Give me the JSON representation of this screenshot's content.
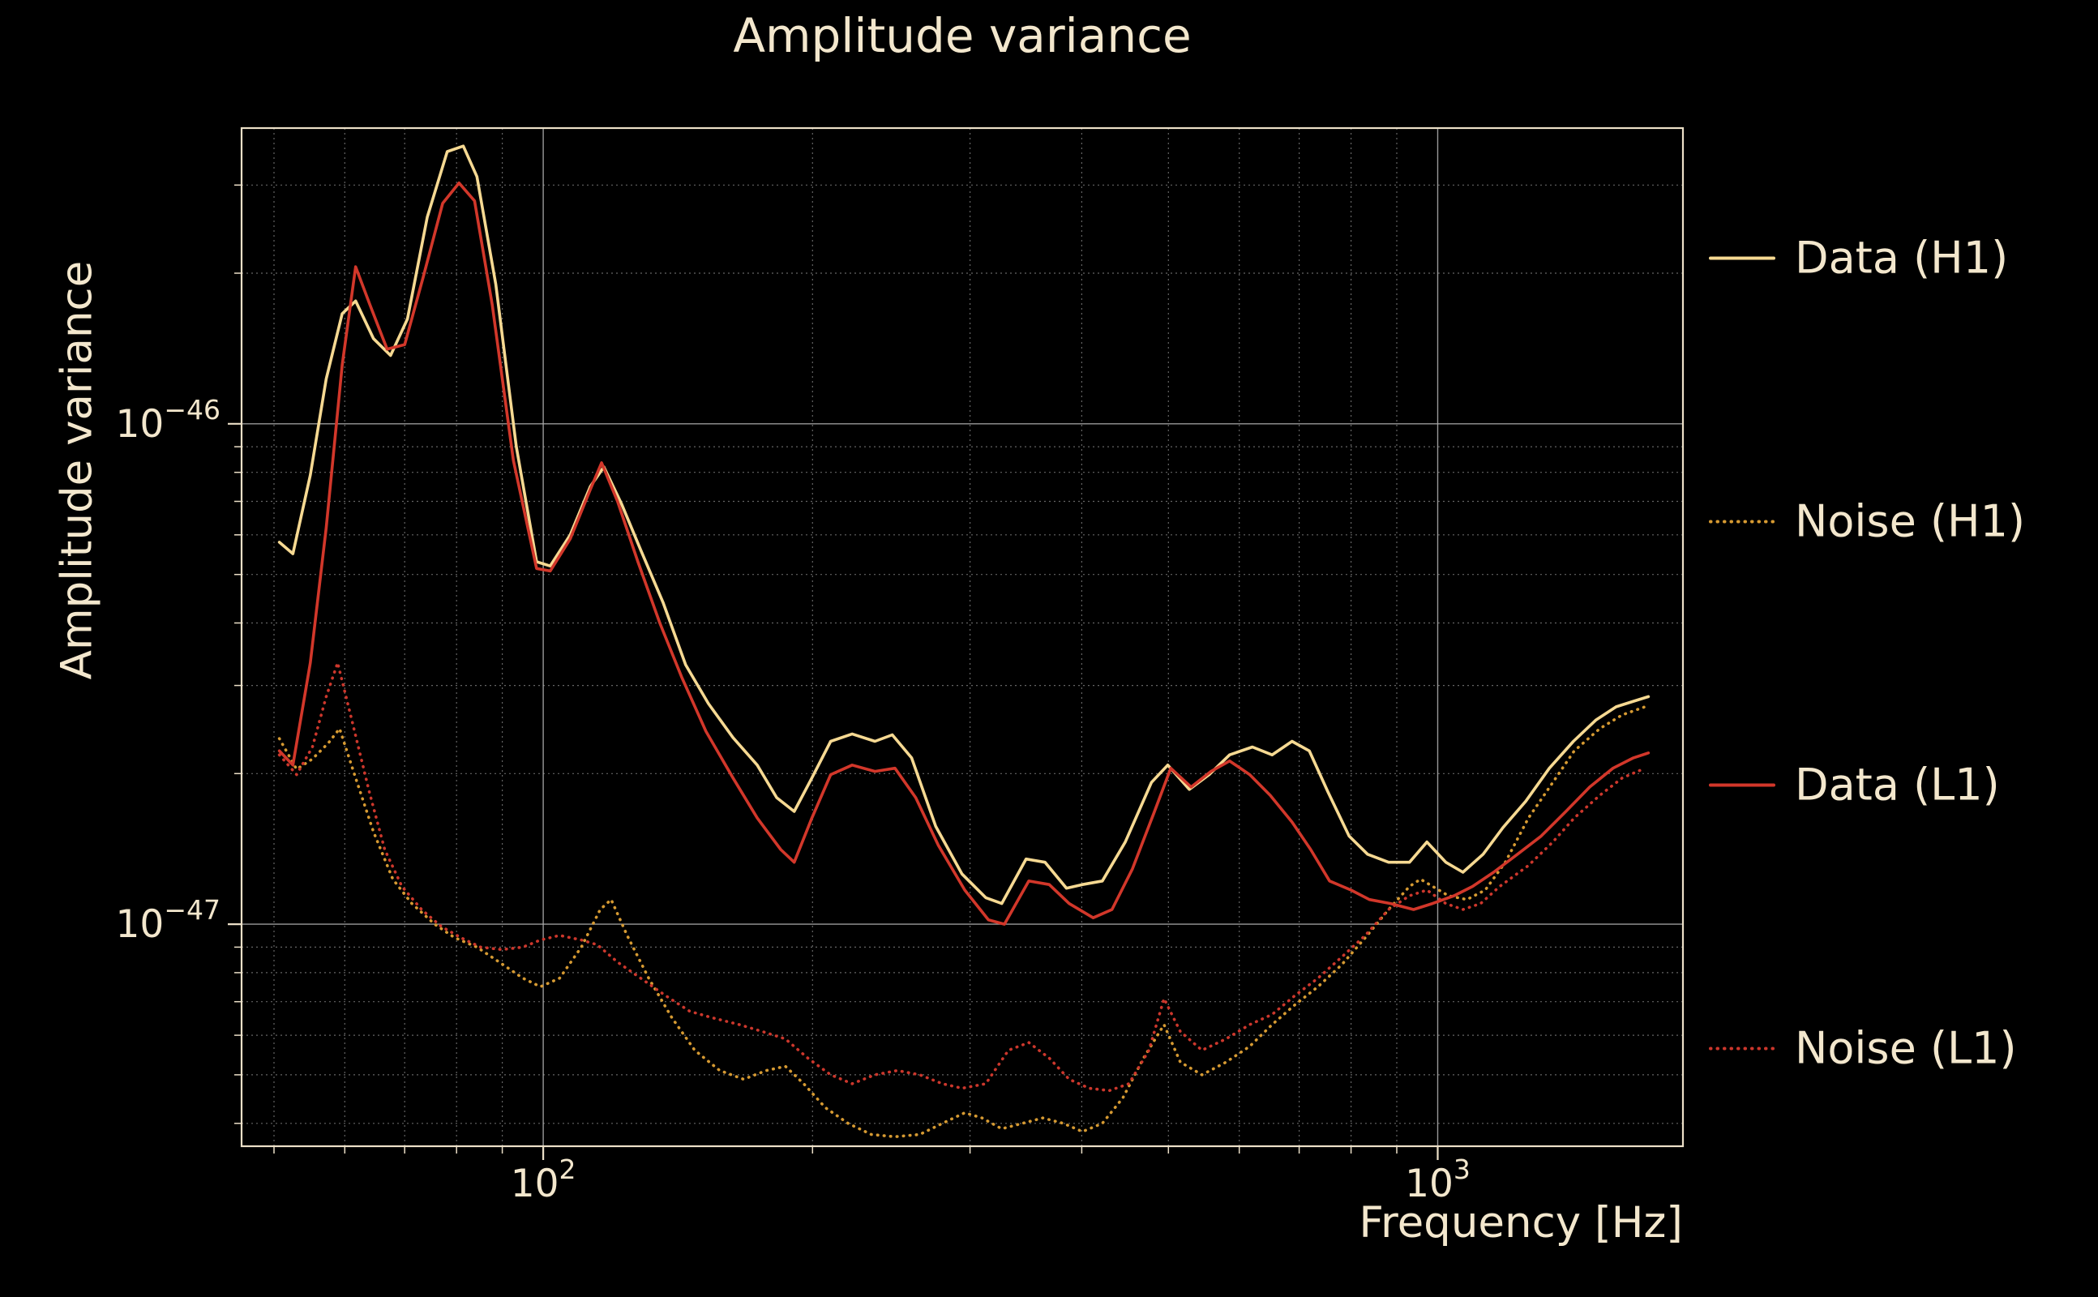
{
  "chart_data": {
    "type": "line",
    "title": "Amplitude variance",
    "xlabel": "Frequency [Hz]",
    "ylabel": "Amplitude variance",
    "x_scale": "log",
    "y_scale": "log",
    "xlim": [
      46,
      1880
    ],
    "ylim": [
      3.6e-48,
      3.9e-46
    ],
    "grid": "both",
    "legend_position": "right",
    "background": "#000000",
    "text_color": "#f3e7cd",
    "x_ticks_major": [
      {
        "value": 100,
        "base": "10",
        "exp": "2"
      },
      {
        "value": 1000,
        "base": "10",
        "exp": "3"
      }
    ],
    "x_ticks_minor": [
      50,
      60,
      70,
      80,
      90,
      200,
      300,
      400,
      500,
      600,
      700,
      800,
      900
    ],
    "y_ticks_major": [
      {
        "value": 1e-46,
        "base": "10",
        "exp": "−46"
      },
      {
        "value": 1e-47,
        "base": "10",
        "exp": "−47"
      }
    ],
    "y_ticks_minor": [
      4e-48,
      5e-48,
      6e-48,
      7e-48,
      8e-48,
      9e-48,
      2e-47,
      3e-47,
      4e-47,
      5e-47,
      6e-47,
      7e-47,
      8e-47,
      9e-47,
      2e-46,
      3e-46
    ],
    "series": [
      {
        "name": "Data (H1)",
        "color": "#f6d992",
        "style": "solid",
        "points": [
          [
            50.7,
            5.8e-47
          ],
          [
            52.5,
            5.5e-47
          ],
          [
            54.9,
            7.9e-47
          ],
          [
            57.2,
            1.23e-46
          ],
          [
            59.6,
            1.66e-46
          ],
          [
            61.7,
            1.76e-46
          ],
          [
            64.6,
            1.48e-46
          ],
          [
            67.5,
            1.37e-46
          ],
          [
            70.5,
            1.62e-46
          ],
          [
            74.2,
            2.59e-46
          ],
          [
            78.1,
            3.5e-46
          ],
          [
            81.4,
            3.59e-46
          ],
          [
            84.3,
            3.12e-46
          ],
          [
            88.5,
            1.9e-46
          ],
          [
            93.3,
            9e-47
          ],
          [
            98.3,
            5.3e-47
          ],
          [
            101.8,
            5.2e-47
          ],
          [
            107.2,
            6e-47
          ],
          [
            112.9,
            7.5e-47
          ],
          [
            116.9,
            8.2e-47
          ],
          [
            122.4,
            6.9e-47
          ],
          [
            128.5,
            5.6e-47
          ],
          [
            136.1,
            4.4e-47
          ],
          [
            144.3,
            3.3e-47
          ],
          [
            153,
            2.76e-47
          ],
          [
            163,
            2.36e-47
          ],
          [
            173.5,
            2.08e-47
          ],
          [
            182.4,
            1.79e-47
          ],
          [
            190.8,
            1.68e-47
          ],
          [
            199.7,
            1.96e-47
          ],
          [
            209.6,
            2.32e-47
          ],
          [
            221.5,
            2.4e-47
          ],
          [
            234.9,
            2.32e-47
          ],
          [
            245.6,
            2.39e-47
          ],
          [
            258.1,
            2.15e-47
          ],
          [
            274.6,
            1.57e-47
          ],
          [
            293.9,
            1.26e-47
          ],
          [
            312.4,
            1.13e-47
          ],
          [
            325.5,
            1.1e-47
          ],
          [
            346.6,
            1.35e-47
          ],
          [
            363.9,
            1.33e-47
          ],
          [
            384.5,
            1.18e-47
          ],
          [
            400.7,
            1.2e-47
          ],
          [
            421.8,
            1.22e-47
          ],
          [
            447.4,
            1.46e-47
          ],
          [
            478.6,
            1.92e-47
          ],
          [
            499.1,
            2.08e-47
          ],
          [
            527.6,
            1.86e-47
          ],
          [
            555.3,
            1.99e-47
          ],
          [
            585.3,
            2.18e-47
          ],
          [
            620.6,
            2.26e-47
          ],
          [
            652.9,
            2.18e-47
          ],
          [
            687.3,
            2.32e-47
          ],
          [
            718.6,
            2.22e-47
          ],
          [
            753.7,
            1.84e-47
          ],
          [
            796.1,
            1.5e-47
          ],
          [
            834.8,
            1.38e-47
          ],
          [
            881.3,
            1.33e-47
          ],
          [
            929.9,
            1.33e-47
          ],
          [
            972.7,
            1.46e-47
          ],
          [
            1021,
            1.33e-47
          ],
          [
            1067,
            1.27e-47
          ],
          [
            1124,
            1.38e-47
          ],
          [
            1183,
            1.56e-47
          ],
          [
            1254,
            1.76e-47
          ],
          [
            1333,
            2.05e-47
          ],
          [
            1418,
            2.32e-47
          ],
          [
            1503,
            2.56e-47
          ],
          [
            1583,
            2.72e-47
          ],
          [
            1655,
            2.79e-47
          ],
          [
            1720,
            2.85e-47
          ]
        ]
      },
      {
        "name": "Noise (H1)",
        "color": "#d69a32",
        "style": "dotted",
        "points": [
          [
            50.7,
            2.35e-47
          ],
          [
            53,
            2.04e-47
          ],
          [
            55.2,
            2.14e-47
          ],
          [
            57.5,
            2.3e-47
          ],
          [
            59.2,
            2.46e-47
          ],
          [
            61.7,
            1.96e-47
          ],
          [
            64.6,
            1.53e-47
          ],
          [
            67.9,
            1.23e-47
          ],
          [
            71.3,
            1.1e-47
          ],
          [
            75.6,
            1e-47
          ],
          [
            79.6,
            9.4e-48
          ],
          [
            84.3,
            9e-48
          ],
          [
            89.3,
            8.4e-48
          ],
          [
            94.9,
            7.8e-48
          ],
          [
            99.3,
            7.5e-48
          ],
          [
            104.3,
            7.8e-48
          ],
          [
            110.3,
            9e-48
          ],
          [
            115.8,
            1.07e-47
          ],
          [
            119.1,
            1.12e-47
          ],
          [
            124.1,
            9.5e-48
          ],
          [
            131.2,
            7.8e-48
          ],
          [
            139.3,
            6.5e-48
          ],
          [
            147.7,
            5.6e-48
          ],
          [
            157.5,
            5.1e-48
          ],
          [
            167.5,
            4.9e-48
          ],
          [
            177.6,
            5.1e-48
          ],
          [
            186.5,
            5.2e-48
          ],
          [
            195.5,
            4.8e-48
          ],
          [
            206.7,
            4.3e-48
          ],
          [
            219.2,
            4e-48
          ],
          [
            232.7,
            3.8e-48
          ],
          [
            247.3,
            3.76e-48
          ],
          [
            263.6,
            3.8e-48
          ],
          [
            279.4,
            4e-48
          ],
          [
            296,
            4.2e-48
          ],
          [
            309.4,
            4.1e-48
          ],
          [
            325.5,
            3.9e-48
          ],
          [
            343.2,
            4e-48
          ],
          [
            361.8,
            4.1e-48
          ],
          [
            381.5,
            4e-48
          ],
          [
            400.7,
            3.85e-48
          ],
          [
            421.8,
            4e-48
          ],
          [
            444.7,
            4.5e-48
          ],
          [
            468.9,
            5.4e-48
          ],
          [
            494.4,
            6.3e-48
          ],
          [
            515.5,
            5.3e-48
          ],
          [
            545.1,
            5e-48
          ],
          [
            579.9,
            5.3e-48
          ],
          [
            616.3,
            5.7e-48
          ],
          [
            652.9,
            6.3e-48
          ],
          [
            692.4,
            6.9e-48
          ],
          [
            734.7,
            7.5e-48
          ],
          [
            781.1,
            8.3e-48
          ],
          [
            830,
            9.4e-48
          ],
          [
            881.3,
            1.07e-47
          ],
          [
            929.9,
            1.19e-47
          ],
          [
            956.7,
            1.23e-47
          ],
          [
            1028,
            1.14e-47
          ],
          [
            1078,
            1.12e-47
          ],
          [
            1130,
            1.17e-47
          ],
          [
            1190,
            1.33e-47
          ],
          [
            1263,
            1.63e-47
          ],
          [
            1345,
            1.92e-47
          ],
          [
            1421,
            2.22e-47
          ],
          [
            1518,
            2.46e-47
          ],
          [
            1608,
            2.62e-47
          ],
          [
            1705,
            2.72e-47
          ]
        ]
      },
      {
        "name": "Data (L1)",
        "color": "#d2372a",
        "style": "solid",
        "points": [
          [
            50.7,
            2.22e-47
          ],
          [
            52.5,
            2.08e-47
          ],
          [
            54.9,
            3.33e-47
          ],
          [
            57.2,
            6.2e-47
          ],
          [
            59.6,
            1.31e-46
          ],
          [
            61.7,
            2.06e-46
          ],
          [
            64,
            1.73e-46
          ],
          [
            66.9,
            1.41e-46
          ],
          [
            70,
            1.44e-46
          ],
          [
            73.4,
            1.96e-46
          ],
          [
            77.2,
            2.76e-46
          ],
          [
            80.5,
            3.03e-46
          ],
          [
            83.8,
            2.79e-46
          ],
          [
            87.7,
            1.73e-46
          ],
          [
            92.6,
            8.45e-47
          ],
          [
            98.3,
            5.14e-47
          ],
          [
            101.8,
            5.08e-47
          ],
          [
            107.2,
            5.89e-47
          ],
          [
            112.9,
            7.4e-47
          ],
          [
            116.2,
            8.36e-47
          ],
          [
            121.1,
            7e-47
          ],
          [
            127.6,
            5.3e-47
          ],
          [
            135,
            4e-47
          ],
          [
            142.8,
            3.12e-47
          ],
          [
            152,
            2.43e-47
          ],
          [
            163,
            1.96e-47
          ],
          [
            173.5,
            1.63e-47
          ],
          [
            184.3,
            1.41e-47
          ],
          [
            190.8,
            1.33e-47
          ],
          [
            199.7,
            1.63e-47
          ],
          [
            209.6,
            1.99e-47
          ],
          [
            221.5,
            2.08e-47
          ],
          [
            234.9,
            2.02e-47
          ],
          [
            247.3,
            2.05e-47
          ],
          [
            260.9,
            1.79e-47
          ],
          [
            276.4,
            1.44e-47
          ],
          [
            296,
            1.17e-47
          ],
          [
            314.6,
            1.02e-47
          ],
          [
            327.8,
            1e-47
          ],
          [
            349,
            1.22e-47
          ],
          [
            367.9,
            1.2e-47
          ],
          [
            387.2,
            1.1e-47
          ],
          [
            411.9,
            1.03e-47
          ],
          [
            432.4,
            1.07e-47
          ],
          [
            455.7,
            1.29e-47
          ],
          [
            481.1,
            1.66e-47
          ],
          [
            503,
            2.05e-47
          ],
          [
            530,
            1.88e-47
          ],
          [
            557.9,
            2.02e-47
          ],
          [
            585.3,
            2.12e-47
          ],
          [
            616.3,
            1.99e-47
          ],
          [
            649.8,
            1.81e-47
          ],
          [
            687.3,
            1.6e-47
          ],
          [
            721.1,
            1.41e-47
          ],
          [
            757,
            1.22e-47
          ],
          [
            800,
            1.17e-47
          ],
          [
            838.7,
            1.12e-47
          ],
          [
            885.6,
            1.1e-47
          ],
          [
            939.8,
            1.07e-47
          ],
          [
            986.6,
            1.1e-47
          ],
          [
            1043,
            1.14e-47
          ],
          [
            1094,
            1.19e-47
          ],
          [
            1155,
            1.27e-47
          ],
          [
            1228,
            1.38e-47
          ],
          [
            1305,
            1.5e-47
          ],
          [
            1391,
            1.68e-47
          ],
          [
            1479,
            1.88e-47
          ],
          [
            1570,
            2.05e-47
          ],
          [
            1655,
            2.15e-47
          ],
          [
            1720,
            2.2e-47
          ]
        ]
      },
      {
        "name": "Noise (L1)",
        "color": "#cc372c",
        "style": "dotted",
        "points": [
          [
            50.7,
            2.18e-47
          ],
          [
            53,
            1.99e-47
          ],
          [
            55.2,
            2.26e-47
          ],
          [
            57.2,
            2.85e-47
          ],
          [
            58.9,
            3.33e-47
          ],
          [
            61,
            2.59e-47
          ],
          [
            63.9,
            1.84e-47
          ],
          [
            66.5,
            1.41e-47
          ],
          [
            69.5,
            1.19e-47
          ],
          [
            73.1,
            1.07e-47
          ],
          [
            76.9,
            9.9e-48
          ],
          [
            80.9,
            9.4e-48
          ],
          [
            85.1,
            9e-48
          ],
          [
            89.9,
            8.9e-48
          ],
          [
            94.9,
            9e-48
          ],
          [
            99.3,
            9.3e-48
          ],
          [
            104.3,
            9.5e-48
          ],
          [
            110.3,
            9.3e-48
          ],
          [
            114.9,
            9.1e-48
          ],
          [
            121.1,
            8.4e-48
          ],
          [
            128.5,
            7.8e-48
          ],
          [
            137,
            7.2e-48
          ],
          [
            145.8,
            6.7e-48
          ],
          [
            154.6,
            6.5e-48
          ],
          [
            165.7,
            6.3e-48
          ],
          [
            175.9,
            6.1e-48
          ],
          [
            186.5,
            5.9e-48
          ],
          [
            197.6,
            5.4e-48
          ],
          [
            209.6,
            5e-48
          ],
          [
            221.5,
            4.8e-48
          ],
          [
            234.9,
            5e-48
          ],
          [
            248.9,
            5.1e-48
          ],
          [
            263.6,
            5e-48
          ],
          [
            279.4,
            4.8e-48
          ],
          [
            293.9,
            4.7e-48
          ],
          [
            312.4,
            4.8e-48
          ],
          [
            331.2,
            5.6e-48
          ],
          [
            349,
            5.8e-48
          ],
          [
            367.9,
            5.4e-48
          ],
          [
            387.2,
            4.9e-48
          ],
          [
            407.7,
            4.7e-48
          ],
          [
            429.4,
            4.65e-48
          ],
          [
            451.6,
            4.8e-48
          ],
          [
            475.5,
            5.6e-48
          ],
          [
            494.4,
            7.1e-48
          ],
          [
            515.5,
            6.1e-48
          ],
          [
            545.1,
            5.6e-48
          ],
          [
            579.9,
            5.9e-48
          ],
          [
            616.3,
            6.3e-48
          ],
          [
            652.9,
            6.6e-48
          ],
          [
            692.4,
            7.2e-48
          ],
          [
            734.7,
            7.8e-48
          ],
          [
            781.1,
            8.6e-48
          ],
          [
            830,
            9.5e-48
          ],
          [
            881.3,
            1.07e-47
          ],
          [
            929.9,
            1.14e-47
          ],
          [
            972.7,
            1.17e-47
          ],
          [
            1021,
            1.1e-47
          ],
          [
            1067,
            1.07e-47
          ],
          [
            1117,
            1.1e-47
          ],
          [
            1173,
            1.19e-47
          ],
          [
            1263,
            1.31e-47
          ],
          [
            1345,
            1.46e-47
          ],
          [
            1421,
            1.63e-47
          ],
          [
            1518,
            1.81e-47
          ],
          [
            1608,
            1.96e-47
          ],
          [
            1705,
            2.05e-47
          ]
        ]
      }
    ]
  }
}
